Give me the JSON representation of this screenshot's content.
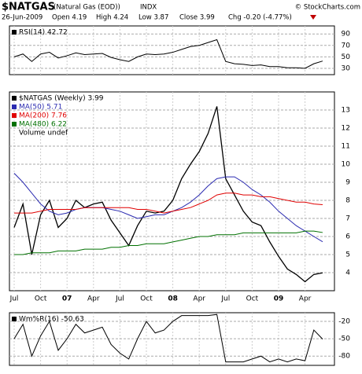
{
  "header": {
    "symbol": "$NATGAS",
    "name": "(Natural Gas (EOD))",
    "exchange": "INDX",
    "copyright": "© StockCharts.com",
    "date": "26-Jun-2009",
    "open": "Open 4.19",
    "high": "High 4.24",
    "low": "Low 3.87",
    "close": "Close 3.99",
    "change": "Chg -0.20 (-4.77%)"
  },
  "chart_data": [
    {
      "type": "line",
      "ylim": [
        19,
        104
      ],
      "yticks": [
        30,
        50,
        70,
        90
      ],
      "grid": true,
      "series": [
        {
          "name": "RSI(14) 42.72",
          "color": "#000000",
          "values": [
            50,
            55,
            42,
            55,
            58,
            48,
            52,
            57,
            54,
            55,
            56,
            49,
            45,
            42,
            50,
            55,
            54,
            55,
            58,
            63,
            68,
            70,
            75,
            80,
            42,
            38,
            37,
            35,
            36,
            33,
            33,
            31,
            31,
            30,
            38,
            42.72
          ]
        }
      ]
    },
    {
      "type": "line",
      "ylim": [
        3,
        14
      ],
      "yticks": [
        4,
        5,
        6,
        7,
        8,
        9,
        10,
        11,
        12,
        13
      ],
      "grid": true,
      "legend_note": "Volume undef",
      "categories": [
        "Jul",
        null,
        null,
        "Oct",
        null,
        null,
        "07",
        null,
        null,
        "Apr",
        null,
        null,
        "Jul",
        null,
        null,
        "Oct",
        null,
        null,
        "08",
        null,
        null,
        "Apr",
        null,
        null,
        "Jul",
        null,
        null,
        "Oct",
        null,
        null,
        "09",
        null,
        null,
        "Apr",
        null,
        null
      ],
      "series": [
        {
          "name": "$NATGAS (Weekly) 3.99",
          "color": "#000000",
          "values": [
            6.5,
            7.8,
            5.0,
            7.2,
            8.0,
            6.5,
            7.0,
            8.0,
            7.6,
            7.8,
            7.9,
            6.9,
            6.2,
            5.5,
            6.6,
            7.4,
            7.3,
            7.4,
            8.0,
            9.2,
            10.0,
            10.7,
            11.7,
            13.2,
            9.2,
            8.3,
            7.4,
            6.8,
            6.6,
            5.7,
            4.9,
            4.2,
            3.9,
            3.5,
            3.9,
            3.99
          ]
        },
        {
          "name": "MA(50) 5.71",
          "color": "#2a2ab0",
          "values": [
            9.5,
            9.0,
            8.4,
            7.8,
            7.4,
            7.2,
            7.3,
            7.5,
            7.6,
            7.6,
            7.6,
            7.5,
            7.4,
            7.2,
            7.0,
            7.1,
            7.2,
            7.2,
            7.4,
            7.6,
            7.9,
            8.3,
            8.8,
            9.2,
            9.3,
            9.3,
            9.0,
            8.6,
            8.3,
            7.9,
            7.4,
            7.0,
            6.6,
            6.3,
            6.0,
            5.71
          ]
        },
        {
          "name": "MA(200) 7.76",
          "color": "#e00000",
          "values": [
            7.3,
            7.3,
            7.3,
            7.4,
            7.5,
            7.5,
            7.5,
            7.5,
            7.6,
            7.6,
            7.6,
            7.6,
            7.6,
            7.6,
            7.5,
            7.5,
            7.4,
            7.3,
            7.4,
            7.5,
            7.6,
            7.8,
            8.0,
            8.3,
            8.4,
            8.4,
            8.3,
            8.3,
            8.2,
            8.2,
            8.1,
            8.0,
            7.9,
            7.9,
            7.8,
            7.76
          ]
        },
        {
          "name": "MA(480) 6.22",
          "color": "#007000",
          "values": [
            5.0,
            5.0,
            5.1,
            5.1,
            5.1,
            5.2,
            5.2,
            5.2,
            5.3,
            5.3,
            5.3,
            5.4,
            5.4,
            5.5,
            5.5,
            5.6,
            5.6,
            5.6,
            5.7,
            5.8,
            5.9,
            6.0,
            6.0,
            6.1,
            6.1,
            6.1,
            6.2,
            6.2,
            6.2,
            6.2,
            6.2,
            6.2,
            6.2,
            6.3,
            6.3,
            6.22
          ]
        }
      ]
    },
    {
      "type": "line",
      "ylim": [
        -96,
        -5
      ],
      "yticks": [
        -20,
        -50,
        -80
      ],
      "grid": true,
      "series": [
        {
          "name": "Wm%R(16) -50.63",
          "color": "#000000",
          "values": [
            -50,
            -25,
            -80,
            -45,
            -20,
            -70,
            -50,
            -25,
            -40,
            -35,
            -30,
            -60,
            -75,
            -85,
            -50,
            -20,
            -40,
            -35,
            -20,
            -10,
            -10,
            -10,
            -10,
            -8,
            -90,
            -90,
            -90,
            -85,
            -80,
            -90,
            -85,
            -90,
            -85,
            -88,
            -35,
            -50.63
          ]
        }
      ]
    }
  ]
}
